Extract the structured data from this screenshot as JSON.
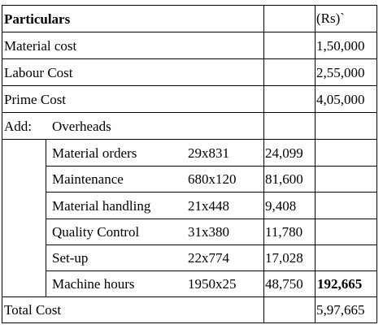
{
  "header": {
    "particulars": "Particulars",
    "currency": "(Rs)`"
  },
  "rows": {
    "material_cost": {
      "label": "Material cost",
      "amount": "1,50,000"
    },
    "labour_cost": {
      "label": "Labour Cost",
      "amount": "2,55,000"
    },
    "prime_cost": {
      "label": "Prime Cost",
      "amount": "4,05,000"
    },
    "add_overheads": {
      "add": "Add:",
      "label": "Overheads"
    },
    "overheads": [
      {
        "label": "Material orders",
        "calc": "29x831",
        "value": "24,099"
      },
      {
        "label": "Maintenance",
        "calc": "680x120",
        "value": "81,600"
      },
      {
        "label": "Material handling",
        "calc": "21x448",
        "value": "9,408"
      },
      {
        "label": "Quality Control",
        "calc": "31x380",
        "value": "11,780"
      },
      {
        "label": "Set-up",
        "calc": "22x774",
        "value": "17,028"
      },
      {
        "label": "Machine hours",
        "calc": "1950x25",
        "value": "48,750",
        "total": "192,665"
      }
    ],
    "total_cost": {
      "label": "Total Cost",
      "amount": "5,97,665"
    }
  }
}
